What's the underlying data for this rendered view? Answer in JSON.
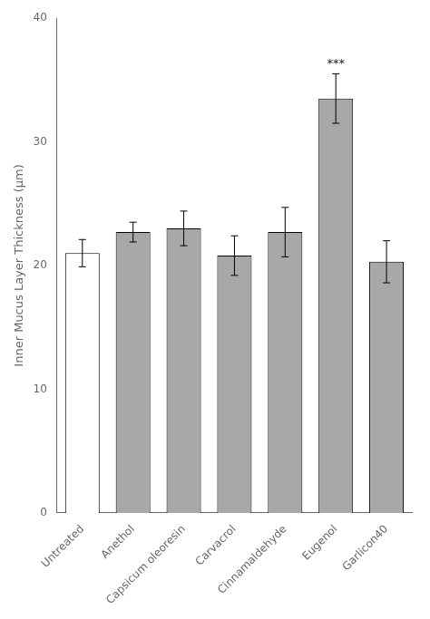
{
  "chart_data": {
    "type": "bar",
    "categories": [
      "Untreated",
      "Anethol",
      "Capsicum oleoresin",
      "Carvacrol",
      "Cinnamaldehyde",
      "Eugenol",
      "Garlicon40"
    ],
    "values": [
      21.0,
      22.7,
      23.0,
      20.8,
      22.7,
      33.5,
      20.3
    ],
    "errors": [
      1.1,
      0.8,
      1.4,
      1.6,
      2.0,
      2.0,
      1.7
    ],
    "colors": [
      "#ffffff",
      "#a8a8a8",
      "#a8a8a8",
      "#a8a8a8",
      "#a8a8a8",
      "#a8a8a8",
      "#a8a8a8"
    ],
    "ylabel": "Inner Mucus Layer Thickness (μm)",
    "ylim": [
      0,
      40
    ],
    "yticks": [
      0,
      10,
      20,
      30,
      40
    ],
    "grid": false,
    "annotations": [
      {
        "text": "***",
        "x": "Eugenol"
      }
    ]
  }
}
